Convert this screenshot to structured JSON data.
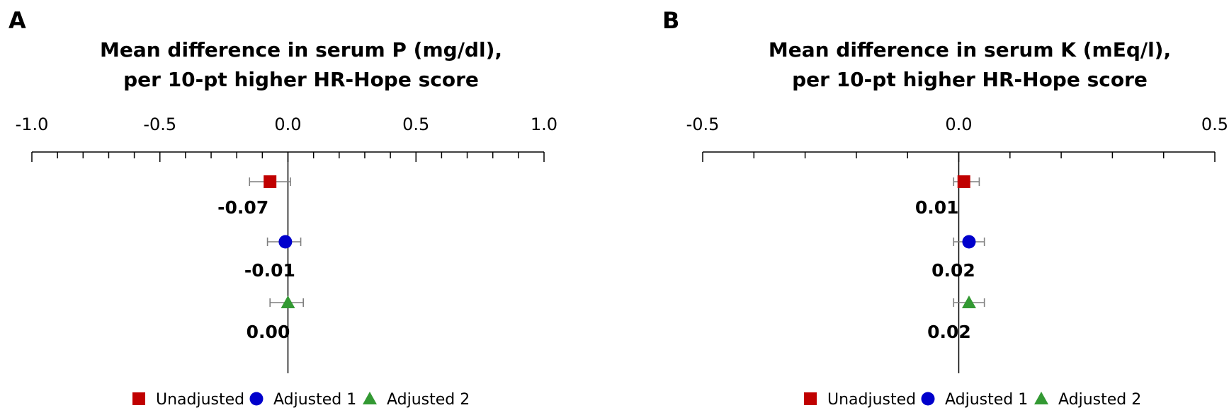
{
  "legend": [
    {
      "name": "Unadjusted",
      "marker": "square",
      "color": "#c00000"
    },
    {
      "name": "Adjusted 1",
      "marker": "circle",
      "color": "#0000cc"
    },
    {
      "name": "Adjusted 2",
      "marker": "triangle",
      "color": "#339933"
    }
  ],
  "chart_data": [
    {
      "panel": "A",
      "type": "scatter",
      "title_lines": [
        "Mean difference in serum P (mg/dl),",
        "per 10-pt higher HR-Hope score"
      ],
      "xlim": [
        -1.0,
        1.0
      ],
      "major_ticks": [
        -1.0,
        -0.5,
        0.0,
        0.5,
        1.0
      ],
      "tick_labels": [
        "-1.0",
        "-0.5",
        "0.0",
        "0.5",
        "1.0"
      ],
      "minor_step": 0.1,
      "series": [
        {
          "name": "Unadjusted",
          "estimate": -0.07,
          "lower": -0.15,
          "upper": 0.01,
          "label": "-0.07"
        },
        {
          "name": "Adjusted 1",
          "estimate": -0.01,
          "lower": -0.08,
          "upper": 0.05,
          "label": "-0.01"
        },
        {
          "name": "Adjusted 2",
          "estimate": 0.0,
          "lower": -0.07,
          "upper": 0.06,
          "label": "0.00"
        }
      ]
    },
    {
      "panel": "B",
      "type": "scatter",
      "title_lines": [
        "Mean difference in serum K (mEq/l),",
        "per 10-pt higher HR-Hope score"
      ],
      "xlim": [
        -0.5,
        0.5
      ],
      "major_ticks": [
        -0.5,
        0.0,
        0.5
      ],
      "tick_labels": [
        "-0.5",
        "0.0",
        "0.5"
      ],
      "minor_step": 0.1,
      "series": [
        {
          "name": "Unadjusted",
          "estimate": 0.01,
          "lower": -0.01,
          "upper": 0.04,
          "label": "0.01"
        },
        {
          "name": "Adjusted 1",
          "estimate": 0.02,
          "lower": -0.01,
          "upper": 0.05,
          "label": "0.02"
        },
        {
          "name": "Adjusted 2",
          "estimate": 0.02,
          "lower": -0.01,
          "upper": 0.05,
          "label": "0.02"
        }
      ]
    }
  ]
}
